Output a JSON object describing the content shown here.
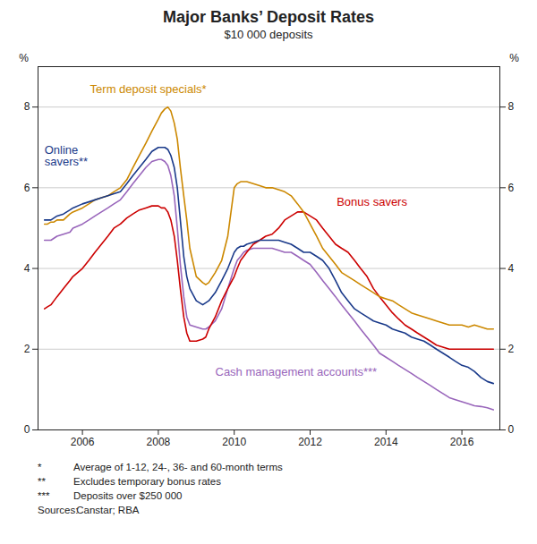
{
  "chart_data": {
    "type": "line",
    "title": "Major Banks’ Deposit Rates",
    "subtitle": "$10 000 deposits",
    "ylabel": "%",
    "y2label": "%",
    "xlim": [
      2004.83,
      2017.0
    ],
    "xticks": [
      2006,
      2008,
      2010,
      2012,
      2014,
      2016
    ],
    "ylim": [
      0,
      9
    ],
    "yticks": [
      0,
      2,
      4,
      6,
      8
    ],
    "y2lim": [
      0,
      9
    ],
    "y2ticks": [
      0,
      2,
      4,
      6,
      8
    ],
    "grid": "y",
    "x": [
      2005.0,
      2005.08,
      2005.17,
      2005.25,
      2005.33,
      2005.5,
      2005.67,
      2005.75,
      2006.0,
      2006.17,
      2006.33,
      2006.5,
      2006.67,
      2006.83,
      2007.0,
      2007.17,
      2007.33,
      2007.5,
      2007.67,
      2007.83,
      2008.0,
      2008.08,
      2008.17,
      2008.25,
      2008.33,
      2008.42,
      2008.5,
      2008.58,
      2008.67,
      2008.75,
      2008.83,
      2009.0,
      2009.17,
      2009.25,
      2009.33,
      2009.5,
      2009.67,
      2009.83,
      2010.0,
      2010.08,
      2010.17,
      2010.25,
      2010.33,
      2010.5,
      2010.67,
      2010.83,
      2011.0,
      2011.17,
      2011.33,
      2011.5,
      2011.67,
      2011.83,
      2012.0,
      2012.17,
      2012.33,
      2012.5,
      2012.67,
      2012.83,
      2013.0,
      2013.17,
      2013.33,
      2013.5,
      2013.67,
      2013.83,
      2014.0,
      2014.17,
      2014.33,
      2014.5,
      2014.67,
      2014.83,
      2015.0,
      2015.17,
      2015.33,
      2015.5,
      2015.67,
      2015.83,
      2016.0,
      2016.17,
      2016.33,
      2016.5,
      2016.67,
      2016.83
    ],
    "series": [
      {
        "color": "#9966BB",
        "values": [
          4.7,
          4.7,
          4.7,
          4.75,
          4.8,
          4.85,
          4.9,
          5.0,
          5.1,
          5.2,
          5.3,
          5.4,
          5.5,
          5.6,
          5.7,
          5.9,
          6.1,
          6.3,
          6.5,
          6.65,
          6.7,
          6.7,
          6.65,
          6.55,
          6.3,
          5.8,
          5.0,
          4.1,
          3.3,
          2.8,
          2.6,
          2.55,
          2.5,
          2.5,
          2.55,
          2.7,
          3.0,
          3.5,
          4.0,
          4.2,
          4.3,
          4.4,
          4.45,
          4.5,
          4.5,
          4.5,
          4.5,
          4.45,
          4.4,
          4.4,
          4.3,
          4.2,
          4.1,
          3.9,
          3.7,
          3.5,
          3.3,
          3.1,
          2.9,
          2.7,
          2.5,
          2.3,
          2.1,
          1.9,
          1.8,
          1.7,
          1.6,
          1.5,
          1.4,
          1.3,
          1.2,
          1.1,
          1.0,
          0.9,
          0.8,
          0.75,
          0.7,
          0.65,
          0.6,
          0.58,
          0.55,
          0.5
        ]
      },
      {
        "color": "#CC0000",
        "values": [
          3.0,
          3.05,
          3.1,
          3.2,
          3.3,
          3.5,
          3.7,
          3.8,
          4.0,
          4.2,
          4.4,
          4.6,
          4.8,
          5.0,
          5.1,
          5.25,
          5.35,
          5.45,
          5.5,
          5.55,
          5.55,
          5.5,
          5.5,
          5.4,
          5.2,
          4.8,
          4.2,
          3.5,
          2.8,
          2.4,
          2.2,
          2.2,
          2.25,
          2.3,
          2.5,
          2.8,
          3.2,
          3.5,
          3.8,
          4.0,
          4.2,
          4.3,
          4.4,
          4.6,
          4.7,
          4.8,
          4.85,
          5.0,
          5.2,
          5.3,
          5.4,
          5.4,
          5.3,
          5.2,
          5.0,
          4.8,
          4.6,
          4.5,
          4.4,
          4.2,
          4.0,
          3.8,
          3.5,
          3.3,
          3.1,
          2.9,
          2.75,
          2.6,
          2.5,
          2.4,
          2.3,
          2.2,
          2.1,
          2.05,
          2.0,
          2.0,
          2.0,
          2.0,
          2.0,
          2.0,
          2.0,
          2.0
        ]
      },
      {
        "color": "#CC8800",
        "values": [
          5.1,
          5.1,
          5.15,
          5.15,
          5.2,
          5.2,
          5.35,
          5.4,
          5.5,
          5.6,
          5.7,
          5.75,
          5.8,
          5.9,
          6.0,
          6.2,
          6.5,
          6.8,
          7.1,
          7.4,
          7.7,
          7.85,
          7.95,
          8.0,
          7.9,
          7.6,
          7.2,
          6.5,
          5.8,
          5.2,
          4.5,
          3.8,
          3.65,
          3.6,
          3.65,
          3.9,
          4.2,
          4.8,
          6.0,
          6.1,
          6.15,
          6.15,
          6.15,
          6.1,
          6.05,
          6.0,
          6.0,
          5.95,
          5.9,
          5.8,
          5.6,
          5.4,
          5.1,
          4.8,
          4.5,
          4.3,
          4.1,
          3.9,
          3.8,
          3.7,
          3.6,
          3.5,
          3.4,
          3.3,
          3.25,
          3.2,
          3.1,
          3.0,
          2.9,
          2.85,
          2.8,
          2.75,
          2.7,
          2.65,
          2.6,
          2.6,
          2.6,
          2.55,
          2.6,
          2.55,
          2.5,
          2.5
        ]
      },
      {
        "color": "#1A3A8A",
        "values": [
          5.2,
          5.2,
          5.2,
          5.25,
          5.3,
          5.35,
          5.45,
          5.5,
          5.6,
          5.65,
          5.7,
          5.75,
          5.8,
          5.85,
          5.9,
          6.1,
          6.3,
          6.5,
          6.7,
          6.9,
          7.0,
          7.0,
          7.0,
          6.95,
          6.8,
          6.5,
          6.0,
          5.2,
          4.3,
          3.8,
          3.5,
          3.2,
          3.1,
          3.15,
          3.2,
          3.4,
          3.7,
          4.0,
          4.4,
          4.5,
          4.55,
          4.55,
          4.6,
          4.65,
          4.7,
          4.7,
          4.7,
          4.7,
          4.65,
          4.6,
          4.5,
          4.4,
          4.4,
          4.3,
          4.2,
          4.0,
          3.7,
          3.4,
          3.2,
          3.0,
          2.9,
          2.8,
          2.7,
          2.65,
          2.6,
          2.5,
          2.45,
          2.4,
          2.3,
          2.25,
          2.2,
          2.1,
          2.0,
          1.9,
          1.8,
          1.7,
          1.6,
          1.55,
          1.45,
          1.3,
          1.2,
          1.15
        ]
      }
    ],
    "annotations": [
      {
        "text": "Term deposit specials*",
        "x": 2006.2,
        "y": 8.35,
        "color": "#CC8800"
      },
      {
        "text": "Online\nsavers**",
        "x": 2005.0,
        "y": 6.55,
        "color": "#1A3A8A"
      },
      {
        "text": "Bonus savers",
        "x": 2012.7,
        "y": 5.55,
        "color": "#CC0000"
      },
      {
        "text": "Cash management accounts***",
        "x": 2009.5,
        "y": 1.35,
        "color": "#9966BB"
      }
    ],
    "footnotes": [
      [
        "*",
        "Average of 1-12, 24-, 36- and 60-month terms"
      ],
      [
        "**",
        "Excludes temporary bonus rates"
      ],
      [
        "***",
        "Deposits over $250 000"
      ],
      [
        "Sources:",
        " Canstar; RBA"
      ]
    ]
  }
}
